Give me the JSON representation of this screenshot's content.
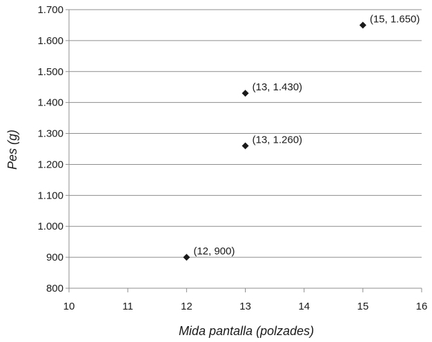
{
  "chart_data": {
    "type": "scatter",
    "title": "",
    "xlabel": "Mida pantalla (polzades)",
    "ylabel": "Pes (g)",
    "xlim": [
      10,
      16
    ],
    "ylim": [
      800,
      1700
    ],
    "x_ticks": [
      10,
      11,
      12,
      13,
      14,
      15,
      16
    ],
    "y_ticks": [
      800,
      900,
      1000,
      1100,
      1200,
      1300,
      1400,
      1500,
      1600,
      1700
    ],
    "y_tick_labels": [
      "800",
      "900",
      "1.000",
      "1.100",
      "1.200",
      "1.300",
      "1.400",
      "1.500",
      "1.600",
      "1.700"
    ],
    "grid": "horizontal",
    "marker": "diamond",
    "marker_color": "#1a1a1a",
    "points": [
      {
        "x": 12,
        "y": 900,
        "label": "(12, 900)"
      },
      {
        "x": 13,
        "y": 1260,
        "label": "(13, 1.260)"
      },
      {
        "x": 13,
        "y": 1430,
        "label": "(13, 1.430)"
      },
      {
        "x": 15,
        "y": 1650,
        "label": "(15, 1.650)"
      }
    ]
  }
}
